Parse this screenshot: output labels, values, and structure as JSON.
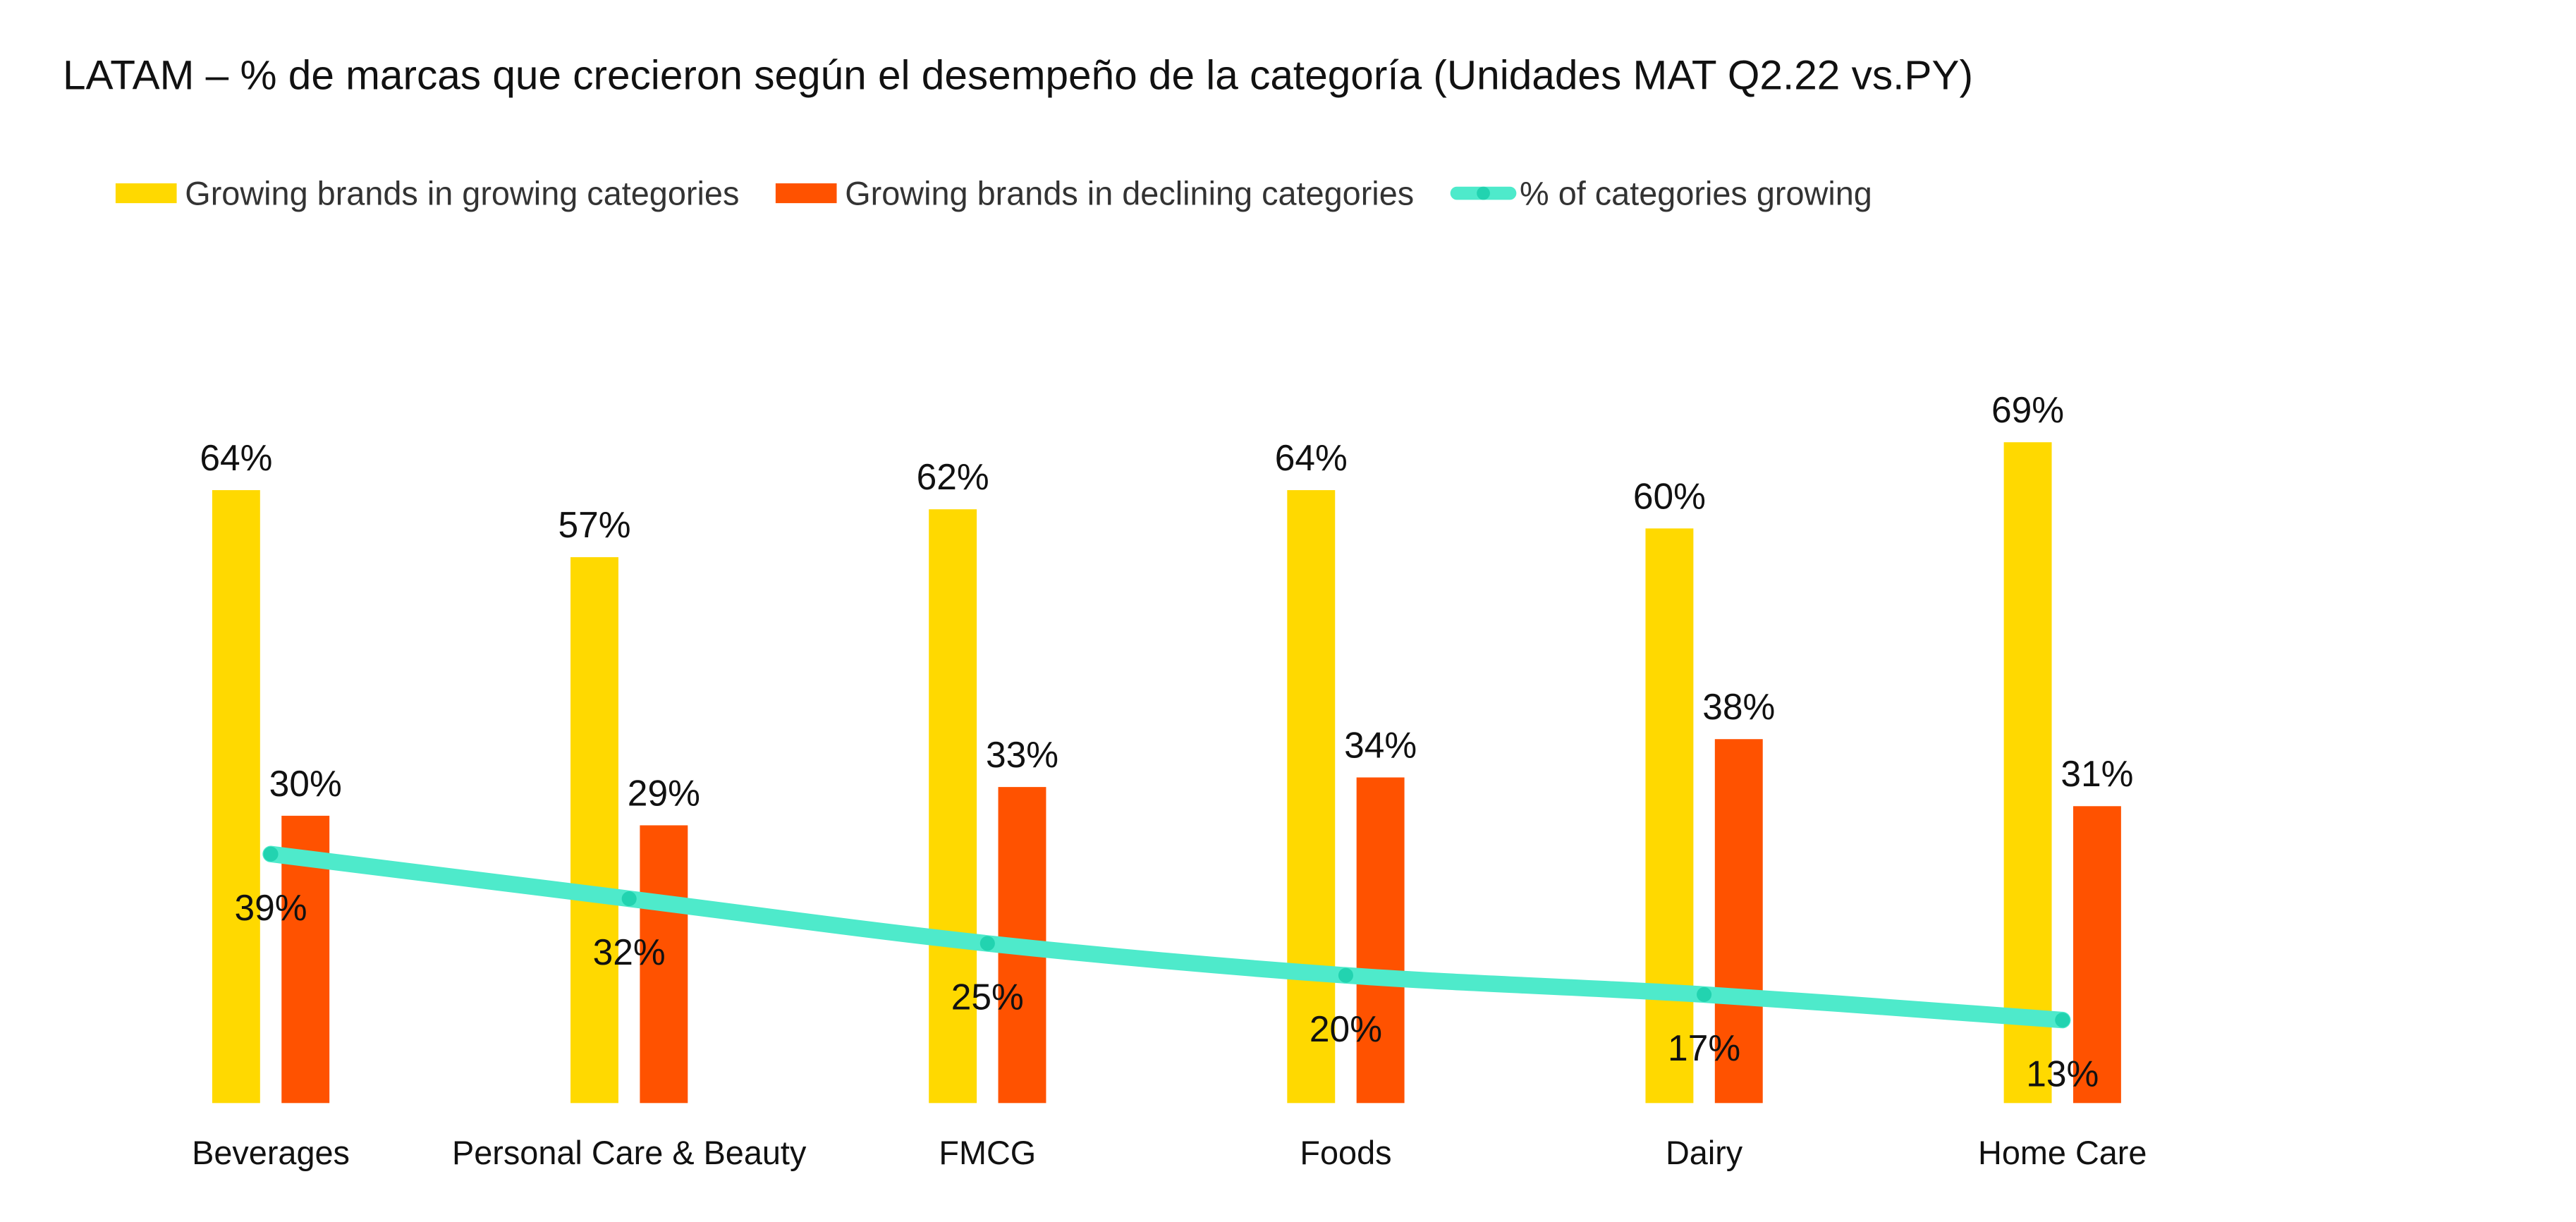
{
  "chart_data": {
    "type": "bar",
    "title": "LATAM – % de marcas que crecieron según el desempeño de la categoría (Unidades MAT Q2.22 vs.PY)",
    "categories": [
      "Beverages",
      "Personal Care & Beauty",
      "FMCG",
      "Foods",
      "Dairy",
      "Home Care"
    ],
    "series": [
      {
        "name": "Growing brands in growing categories",
        "type": "bar",
        "color": "#ffd900",
        "values": [
          64,
          57,
          62,
          64,
          60,
          69
        ],
        "value_labels": [
          "64%",
          "57%",
          "62%",
          "64%",
          "60%",
          "69%"
        ]
      },
      {
        "name": "Growing brands in declining categories",
        "type": "bar",
        "color": "#ff5200",
        "values": [
          30,
          29,
          33,
          34,
          38,
          31
        ],
        "value_labels": [
          "30%",
          "29%",
          "33%",
          "34%",
          "38%",
          "31%"
        ]
      },
      {
        "name": "% of categories growing",
        "type": "line",
        "axis": "y2",
        "color": "#4eeacb",
        "values": [
          39,
          32,
          25,
          20,
          17,
          13
        ],
        "value_labels": [
          "39%",
          "32%",
          "25%",
          "20%",
          "17%",
          "13%"
        ]
      }
    ],
    "ylim": [
      0,
      100
    ],
    "y2lim": [
      0,
      150
    ],
    "legend": "top"
  }
}
